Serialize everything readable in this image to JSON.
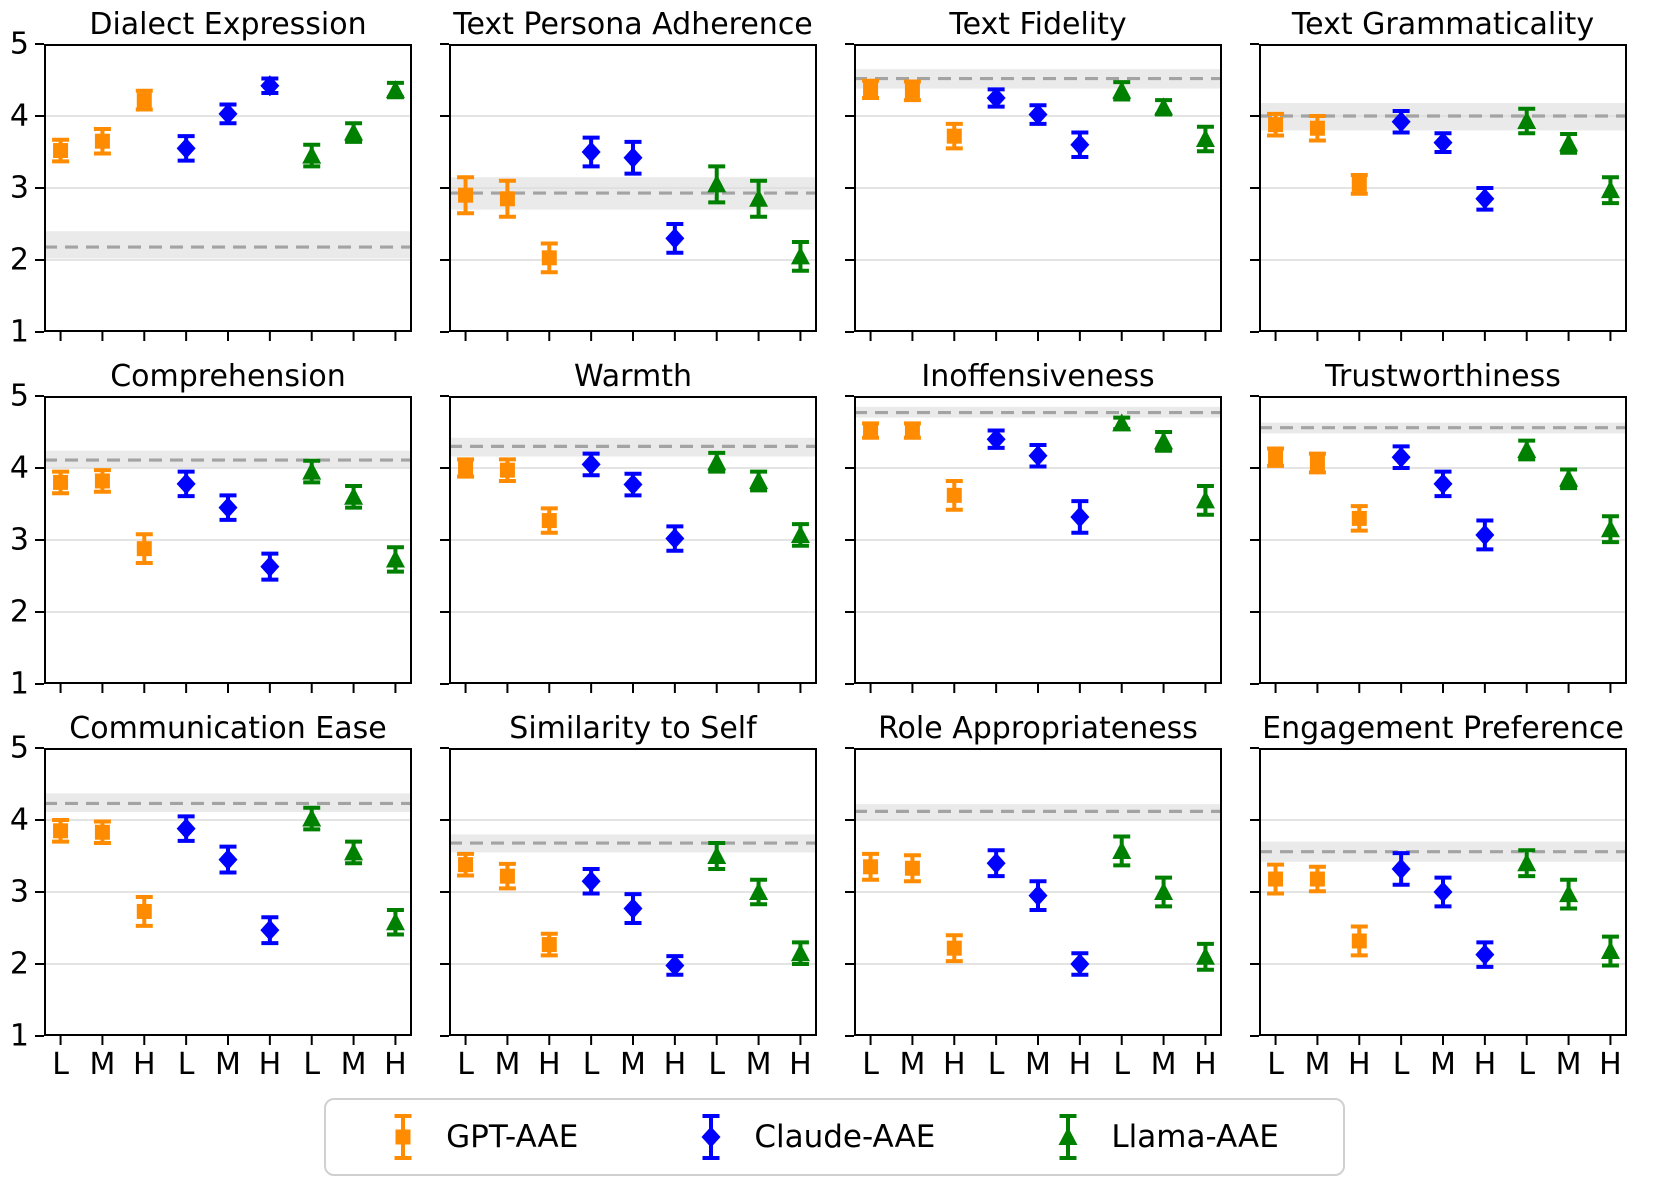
{
  "figure": {
    "y_min": 1,
    "y_max": 5,
    "y_ticks": [
      1,
      2,
      3,
      4,
      5
    ],
    "x_tick_labels": [
      "L",
      "M",
      "H",
      "L",
      "M",
      "H",
      "L",
      "M",
      "H"
    ],
    "grid_on": true,
    "gridline_color": "#dcdcdc",
    "baseline_line_color": "#a3a3a3",
    "baseline_band_color": "#eaeaea",
    "spine_color": "#000000",
    "series": [
      {
        "name": "GPT-AAE",
        "color": "#ff8c00",
        "marker": "square"
      },
      {
        "name": "Claude-AAE",
        "color": "#0000ff",
        "marker": "diamond"
      },
      {
        "name": "Llama-AAE",
        "color": "#008000",
        "marker": "triangle"
      }
    ],
    "legend_position": "bottom-center"
  },
  "chart_data": [
    {
      "type": "scatter",
      "title": "Dialect Expression",
      "x_categories": [
        "L",
        "M",
        "H",
        "L",
        "M",
        "H",
        "L",
        "M",
        "H"
      ],
      "ylim": [
        1,
        5
      ],
      "baseline": 2.18,
      "baseline_band": [
        2.02,
        2.4
      ],
      "series": [
        {
          "name": "GPT-AAE",
          "values": [
            3.52,
            3.65,
            4.22
          ],
          "errors": [
            0.15,
            0.17,
            0.13
          ]
        },
        {
          "name": "Claude-AAE",
          "values": [
            3.55,
            4.03,
            4.42
          ],
          "errors": [
            0.17,
            0.13,
            0.1
          ]
        },
        {
          "name": "Llama-AAE",
          "values": [
            3.45,
            3.77,
            4.36
          ],
          "errors": [
            0.15,
            0.13,
            0.1
          ]
        }
      ]
    },
    {
      "type": "scatter",
      "title": "Text Persona Adherence",
      "x_categories": [
        "L",
        "M",
        "H",
        "L",
        "M",
        "H",
        "L",
        "M",
        "H"
      ],
      "ylim": [
        1,
        5
      ],
      "baseline": 2.93,
      "baseline_band": [
        2.7,
        3.15
      ],
      "series": [
        {
          "name": "GPT-AAE",
          "values": [
            2.9,
            2.85,
            2.03
          ],
          "errors": [
            0.25,
            0.25,
            0.2
          ]
        },
        {
          "name": "Claude-AAE",
          "values": [
            3.5,
            3.42,
            2.3
          ],
          "errors": [
            0.2,
            0.22,
            0.2
          ]
        },
        {
          "name": "Llama-AAE",
          "values": [
            3.05,
            2.85,
            2.05
          ],
          "errors": [
            0.25,
            0.25,
            0.2
          ]
        }
      ]
    },
    {
      "type": "scatter",
      "title": "Text Fidelity",
      "x_categories": [
        "L",
        "M",
        "H",
        "L",
        "M",
        "H",
        "L",
        "M",
        "H"
      ],
      "ylim": [
        1,
        5
      ],
      "baseline": 4.52,
      "baseline_band": [
        4.38,
        4.65
      ],
      "series": [
        {
          "name": "GPT-AAE",
          "values": [
            4.37,
            4.35,
            3.72
          ],
          "errors": [
            0.12,
            0.13,
            0.17
          ]
        },
        {
          "name": "Claude-AAE",
          "values": [
            4.25,
            4.02,
            3.6
          ],
          "errors": [
            0.12,
            0.13,
            0.17
          ]
        },
        {
          "name": "Llama-AAE",
          "values": [
            4.35,
            4.12,
            3.68
          ],
          "errors": [
            0.12,
            0.1,
            0.17
          ]
        }
      ]
    },
    {
      "type": "scatter",
      "title": "Text Grammaticality",
      "x_categories": [
        "L",
        "M",
        "H",
        "L",
        "M",
        "H",
        "L",
        "M",
        "H"
      ],
      "ylim": [
        1,
        5
      ],
      "baseline": 4.0,
      "baseline_band": [
        3.8,
        4.18
      ],
      "series": [
        {
          "name": "GPT-AAE",
          "values": [
            3.88,
            3.83,
            3.05
          ],
          "errors": [
            0.15,
            0.17,
            0.13
          ]
        },
        {
          "name": "Claude-AAE",
          "values": [
            3.92,
            3.63,
            2.85
          ],
          "errors": [
            0.15,
            0.13,
            0.15
          ]
        },
        {
          "name": "Llama-AAE",
          "values": [
            3.93,
            3.62,
            2.97
          ],
          "errors": [
            0.17,
            0.13,
            0.18
          ]
        }
      ]
    },
    {
      "type": "scatter",
      "title": "Comprehension",
      "x_categories": [
        "L",
        "M",
        "H",
        "L",
        "M",
        "H",
        "L",
        "M",
        "H"
      ],
      "ylim": [
        1,
        5
      ],
      "baseline": 4.11,
      "baseline_band": [
        4.0,
        4.24
      ],
      "series": [
        {
          "name": "GPT-AAE",
          "values": [
            3.8,
            3.82,
            2.88
          ],
          "errors": [
            0.15,
            0.15,
            0.2
          ]
        },
        {
          "name": "Claude-AAE",
          "values": [
            3.78,
            3.45,
            2.63
          ],
          "errors": [
            0.17,
            0.17,
            0.18
          ]
        },
        {
          "name": "Llama-AAE",
          "values": [
            3.95,
            3.6,
            2.73
          ],
          "errors": [
            0.15,
            0.15,
            0.17
          ]
        }
      ]
    },
    {
      "type": "scatter",
      "title": "Warmth",
      "x_categories": [
        "L",
        "M",
        "H",
        "L",
        "M",
        "H",
        "L",
        "M",
        "H"
      ],
      "ylim": [
        1,
        5
      ],
      "baseline": 4.3,
      "baseline_band": [
        4.16,
        4.42
      ],
      "series": [
        {
          "name": "GPT-AAE",
          "values": [
            4.0,
            3.97,
            3.27
          ],
          "errors": [
            0.12,
            0.15,
            0.17
          ]
        },
        {
          "name": "Claude-AAE",
          "values": [
            4.05,
            3.77,
            3.02
          ],
          "errors": [
            0.15,
            0.15,
            0.17
          ]
        },
        {
          "name": "Llama-AAE",
          "values": [
            4.08,
            3.82,
            3.07
          ],
          "errors": [
            0.13,
            0.13,
            0.15
          ]
        }
      ]
    },
    {
      "type": "scatter",
      "title": "Inoffensiveness",
      "x_categories": [
        "L",
        "M",
        "H",
        "L",
        "M",
        "H",
        "L",
        "M",
        "H"
      ],
      "ylim": [
        1,
        5
      ],
      "baseline": 4.77,
      "baseline_band": [
        4.7,
        4.85
      ],
      "series": [
        {
          "name": "GPT-AAE",
          "values": [
            4.52,
            4.52,
            3.62
          ],
          "errors": [
            0.1,
            0.1,
            0.2
          ]
        },
        {
          "name": "Claude-AAE",
          "values": [
            4.4,
            4.17,
            3.32
          ],
          "errors": [
            0.12,
            0.15,
            0.22
          ]
        },
        {
          "name": "Llama-AAE",
          "values": [
            4.62,
            4.37,
            3.55
          ],
          "errors": [
            0.08,
            0.13,
            0.2
          ]
        }
      ]
    },
    {
      "type": "scatter",
      "title": "Trustworthiness",
      "x_categories": [
        "L",
        "M",
        "H",
        "L",
        "M",
        "H",
        "L",
        "M",
        "H"
      ],
      "ylim": [
        1,
        5
      ],
      "baseline": 4.56,
      "baseline_band": [
        4.48,
        4.63
      ],
      "series": [
        {
          "name": "GPT-AAE",
          "values": [
            4.15,
            4.07,
            3.3
          ],
          "errors": [
            0.12,
            0.13,
            0.17
          ]
        },
        {
          "name": "Claude-AAE",
          "values": [
            4.15,
            3.78,
            3.07
          ],
          "errors": [
            0.15,
            0.17,
            0.2
          ]
        },
        {
          "name": "Llama-AAE",
          "values": [
            4.25,
            3.85,
            3.15
          ],
          "errors": [
            0.13,
            0.13,
            0.18
          ]
        }
      ]
    },
    {
      "type": "scatter",
      "title": "Communication Ease",
      "x_categories": [
        "L",
        "M",
        "H",
        "L",
        "M",
        "H",
        "L",
        "M",
        "H"
      ],
      "ylim": [
        1,
        5
      ],
      "baseline": 4.23,
      "baseline_band": [
        4.11,
        4.37
      ],
      "series": [
        {
          "name": "GPT-AAE",
          "values": [
            3.85,
            3.83,
            2.73
          ],
          "errors": [
            0.15,
            0.15,
            0.2
          ]
        },
        {
          "name": "Claude-AAE",
          "values": [
            3.88,
            3.45,
            2.47
          ],
          "errors": [
            0.17,
            0.18,
            0.18
          ]
        },
        {
          "name": "Llama-AAE",
          "values": [
            4.02,
            3.55,
            2.58
          ],
          "errors": [
            0.15,
            0.15,
            0.17
          ]
        }
      ]
    },
    {
      "type": "scatter",
      "title": "Similarity to Self",
      "x_categories": [
        "L",
        "M",
        "H",
        "L",
        "M",
        "H",
        "L",
        "M",
        "H"
      ],
      "ylim": [
        1,
        5
      ],
      "baseline": 3.68,
      "baseline_band": [
        3.55,
        3.8
      ],
      "series": [
        {
          "name": "GPT-AAE",
          "values": [
            3.38,
            3.22,
            2.27
          ],
          "errors": [
            0.15,
            0.17,
            0.15
          ]
        },
        {
          "name": "Claude-AAE",
          "values": [
            3.15,
            2.77,
            1.98
          ],
          "errors": [
            0.17,
            0.2,
            0.13
          ]
        },
        {
          "name": "Llama-AAE",
          "values": [
            3.5,
            3.0,
            2.15
          ],
          "errors": [
            0.18,
            0.17,
            0.15
          ]
        }
      ]
    },
    {
      "type": "scatter",
      "title": "Role Appropriateness",
      "x_categories": [
        "L",
        "M",
        "H",
        "L",
        "M",
        "H",
        "L",
        "M",
        "H"
      ],
      "ylim": [
        1,
        5
      ],
      "baseline": 4.12,
      "baseline_band": [
        4.0,
        4.22
      ],
      "series": [
        {
          "name": "GPT-AAE",
          "values": [
            3.35,
            3.33,
            2.22
          ],
          "errors": [
            0.18,
            0.18,
            0.18
          ]
        },
        {
          "name": "Claude-AAE",
          "values": [
            3.4,
            2.95,
            2.0
          ],
          "errors": [
            0.18,
            0.2,
            0.15
          ]
        },
        {
          "name": "Llama-AAE",
          "values": [
            3.57,
            3.0,
            2.1
          ],
          "errors": [
            0.2,
            0.2,
            0.18
          ]
        }
      ]
    },
    {
      "type": "scatter",
      "title": "Engagement Preference",
      "x_categories": [
        "L",
        "M",
        "H",
        "L",
        "M",
        "H",
        "L",
        "M",
        "H"
      ],
      "ylim": [
        1,
        5
      ],
      "baseline": 3.56,
      "baseline_band": [
        3.42,
        3.7
      ],
      "series": [
        {
          "name": "GPT-AAE",
          "values": [
            3.18,
            3.18,
            2.32
          ],
          "errors": [
            0.2,
            0.17,
            0.2
          ]
        },
        {
          "name": "Claude-AAE",
          "values": [
            3.32,
            3.0,
            2.13
          ],
          "errors": [
            0.22,
            0.2,
            0.17
          ]
        },
        {
          "name": "Llama-AAE",
          "values": [
            3.4,
            2.97,
            2.18
          ],
          "errors": [
            0.18,
            0.2,
            0.2
          ]
        }
      ]
    }
  ],
  "legend": {
    "items": [
      {
        "label": "GPT-AAE"
      },
      {
        "label": "Claude-AAE"
      },
      {
        "label": "Llama-AAE"
      }
    ]
  }
}
